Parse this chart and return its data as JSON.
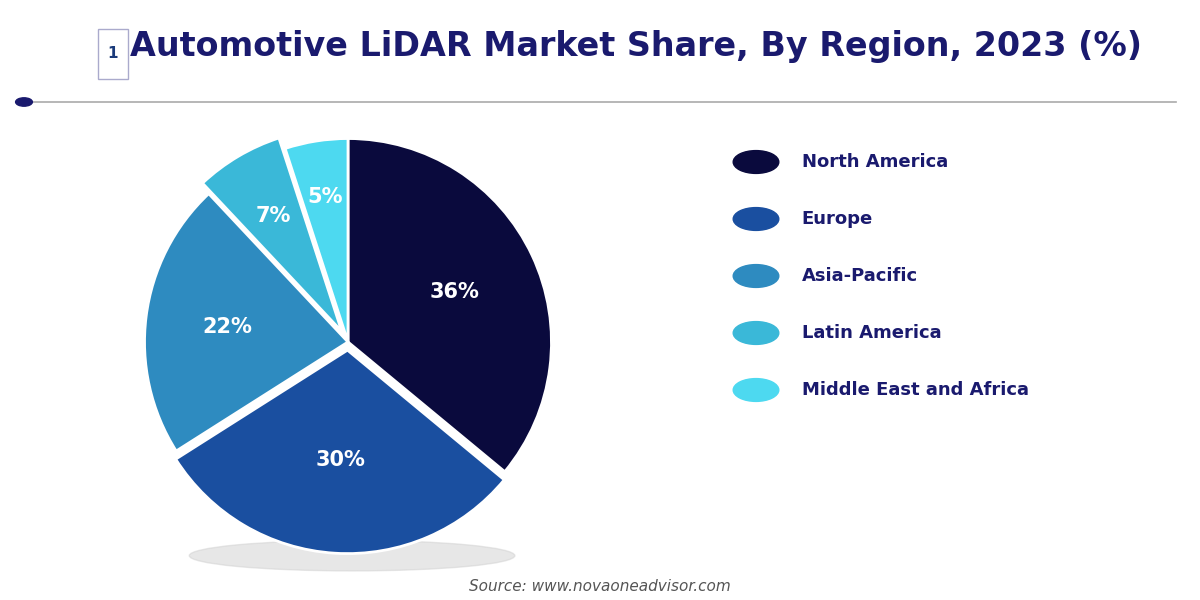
{
  "title": "Automotive LiDAR Market Share, By Region, 2023 (%)",
  "title_color": "#1a1a6e",
  "title_fontsize": 24,
  "background_color": "#ffffff",
  "labels": [
    "North America",
    "Europe",
    "Asia-Pacific",
    "Latin America",
    "Middle East and Africa"
  ],
  "values": [
    36,
    30,
    22,
    7,
    5
  ],
  "colors": [
    "#0a0a3d",
    "#1a4fa0",
    "#2e8bc0",
    "#3ab8d8",
    "#4dd9f0"
  ],
  "explode": [
    0.0,
    0.04,
    0.0,
    0.06,
    0.0
  ],
  "pct_labels": [
    "36%",
    "30%",
    "22%",
    "7%",
    "5%"
  ],
  "legend_labels": [
    "North America",
    "Europe",
    "Asia-Pacific",
    "Latin America",
    "Middle East and Africa"
  ],
  "legend_dot_colors": [
    "#0a0a3d",
    "#1a4fa0",
    "#2e8bc0",
    "#3ab8d8",
    "#4dd9f0"
  ],
  "source_text": "Source: www.novaoneadvisor.com",
  "source_color": "#555555",
  "source_fontsize": 11,
  "legend_fontsize": 13,
  "legend_text_color": "#1a1a6e",
  "pct_fontsize": 15,
  "line_color": "#aaaaaa",
  "dot_color": "#1a1a6e"
}
